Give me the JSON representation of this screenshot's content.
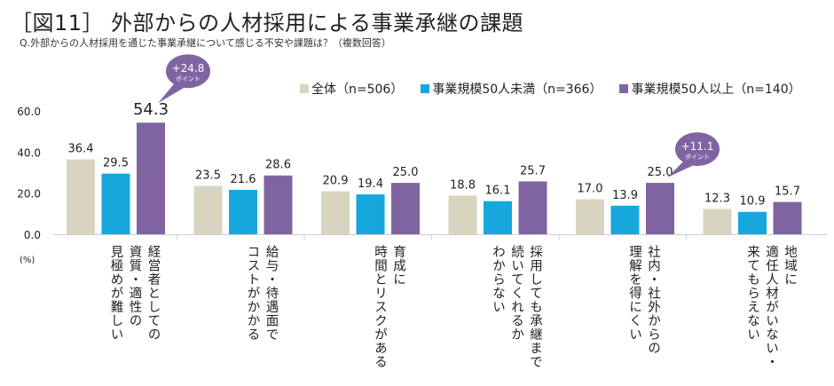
{
  "title": "［図11］ 外部からの人材採用による事業承継の課題",
  "subtitle": "Q.外部からの人材採用を通じた事業承継について感じる不安や課題は？（複数回答）",
  "chart_data": {
    "type": "bar",
    "unit_label": "(%)",
    "ylim": [
      0,
      60
    ],
    "yticks": [
      "0.0",
      "20.0",
      "40.0",
      "60.0"
    ],
    "grid": false,
    "legend_placement": "top-right",
    "categories": [
      [
        "経営者としての",
        "資質・適性の",
        "見極めが難しい"
      ],
      [
        "給与・待遇面で",
        "コストがかかる"
      ],
      [
        "育成に",
        "時間とリスクがある"
      ],
      [
        "採用しても承継まで",
        "続いてくれるか",
        "わからない"
      ],
      [
        "社内・社外からの",
        "理解を得にくい"
      ],
      [
        "地域に",
        "適任人材がいない・",
        "来てもらえない"
      ]
    ],
    "series": [
      {
        "name": "全体（n=506）",
        "color": "#d9d4bf",
        "values": [
          36.4,
          23.5,
          20.9,
          18.8,
          17.0,
          12.3
        ]
      },
      {
        "name": "事業規模50人未満（n=366）",
        "color": "#16a8dc",
        "values": [
          29.5,
          21.6,
          19.4,
          16.1,
          13.9,
          10.9
        ]
      },
      {
        "name": "事業規模50人以上（n=140）",
        "color": "#8064a2",
        "values": [
          54.3,
          28.6,
          25.0,
          25.7,
          25.0,
          15.7
        ]
      }
    ],
    "annotations": [
      {
        "category_index": 0,
        "text": "+24.8",
        "sub": "ポイント"
      },
      {
        "category_index": 4,
        "text": "+11.1",
        "sub": "ポイント"
      }
    ]
  }
}
